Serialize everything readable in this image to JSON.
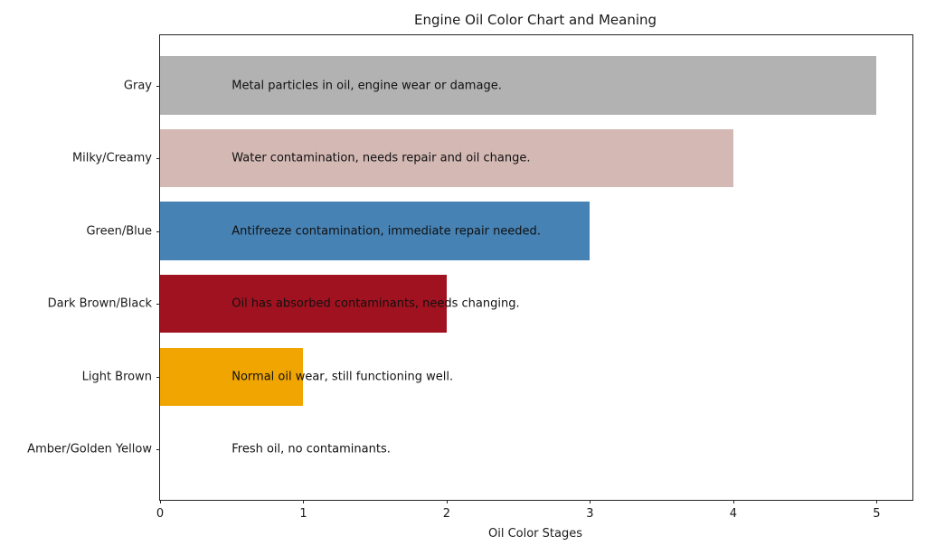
{
  "chart_data": {
    "type": "bar",
    "orientation": "horizontal",
    "title": "Engine Oil Color Chart and Meaning",
    "xlabel": "Oil Color Stages",
    "ylabel": "",
    "categories": [
      "Gray",
      "Milky/Creamy",
      "Green/Blue",
      "Dark Brown/Black",
      "Light Brown",
      "Amber/Golden Yellow"
    ],
    "values": [
      5,
      4,
      3,
      2,
      1,
      0
    ],
    "bar_colors": [
      "#b2b2b2",
      "#d3b8b4",
      "#4682b4",
      "#a0121f",
      "#f0a500",
      null
    ],
    "annotations": [
      "Metal particles in oil, engine wear or damage.",
      "Water contamination, needs repair and oil change.",
      "Antifreeze contamination, immediate repair needed.",
      "Oil has absorbed contaminants, needs changing.",
      "Normal oil wear, still functioning well.",
      "Fresh oil, no contaminants."
    ],
    "annotation_x": 0.5,
    "annotation_color": "#111111",
    "xticks": [
      "0",
      "1",
      "2",
      "3",
      "4",
      "5"
    ],
    "xlim": [
      0,
      5.25
    ],
    "bar_height_fraction": 0.8,
    "grid": false,
    "legend": null,
    "axis_color": "#262626"
  }
}
